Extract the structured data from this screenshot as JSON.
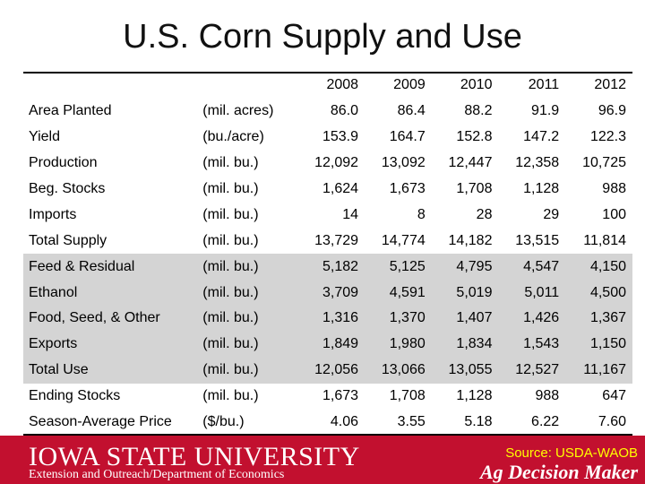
{
  "title": "U.S. Corn Supply and Use",
  "table": {
    "years": [
      "2008",
      "2009",
      "2010",
      "2011",
      "2012"
    ],
    "rows": [
      {
        "label": "Area Planted",
        "unit": "(mil. acres)",
        "values": [
          "86.0",
          "86.4",
          "88.2",
          "91.9",
          "96.9"
        ],
        "shaded": false
      },
      {
        "label": "Yield",
        "unit": "(bu./acre)",
        "values": [
          "153.9",
          "164.7",
          "152.8",
          "147.2",
          "122.3"
        ],
        "shaded": false
      },
      {
        "label": "Production",
        "unit": "(mil. bu.)",
        "values": [
          "12,092",
          "13,092",
          "12,447",
          "12,358",
          "10,725"
        ],
        "shaded": false
      },
      {
        "label": "Beg. Stocks",
        "unit": "(mil. bu.)",
        "values": [
          "1,624",
          "1,673",
          "1,708",
          "1,128",
          "988"
        ],
        "shaded": false
      },
      {
        "label": "Imports",
        "unit": "(mil. bu.)",
        "values": [
          "14",
          "8",
          "28",
          "29",
          "100"
        ],
        "shaded": false
      },
      {
        "label": "Total Supply",
        "unit": "(mil. bu.)",
        "values": [
          "13,729",
          "14,774",
          "14,182",
          "13,515",
          "11,814"
        ],
        "shaded": false
      },
      {
        "label": "Feed & Residual",
        "unit": "(mil. bu.)",
        "values": [
          "5,182",
          "5,125",
          "4,795",
          "4,547",
          "4,150"
        ],
        "shaded": true
      },
      {
        "label": "Ethanol",
        "unit": "(mil. bu.)",
        "values": [
          "3,709",
          "4,591",
          "5,019",
          "5,011",
          "4,500"
        ],
        "shaded": true
      },
      {
        "label": "Food, Seed, & Other",
        "unit": "(mil. bu.)",
        "values": [
          "1,316",
          "1,370",
          "1,407",
          "1,426",
          "1,367"
        ],
        "shaded": true
      },
      {
        "label": "Exports",
        "unit": "(mil. bu.)",
        "values": [
          "1,849",
          "1,980",
          "1,834",
          "1,543",
          "1,150"
        ],
        "shaded": true
      },
      {
        "label": "Total Use",
        "unit": "(mil. bu.)",
        "values": [
          "12,056",
          "13,066",
          "13,055",
          "12,527",
          "11,167"
        ],
        "shaded": true
      },
      {
        "label": "Ending Stocks",
        "unit": "(mil. bu.)",
        "values": [
          "1,673",
          "1,708",
          "1,128",
          "988",
          "647"
        ],
        "shaded": false
      },
      {
        "label": "Season-Average Price",
        "unit": "($/bu.)",
        "values": [
          "4.06",
          "3.55",
          "5.18",
          "6.22",
          "7.60"
        ],
        "shaded": false
      }
    ]
  },
  "footer": {
    "university_part1": "Iowa State ",
    "university_part2": "University",
    "department": "Extension and Outreach/Department of Economics",
    "source": "Source: USDA-WAOB",
    "brand": "Ag Decision Maker"
  },
  "colors": {
    "footer_bg": "#c2102f",
    "shaded_row": "#d4d4d4",
    "source_text": "#ffff00"
  }
}
